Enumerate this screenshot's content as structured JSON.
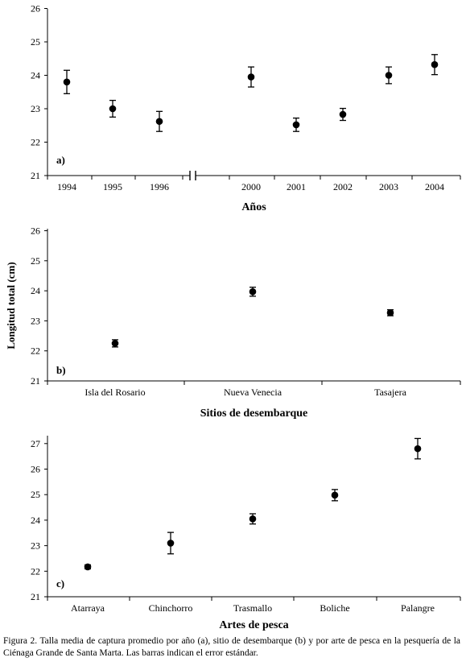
{
  "chart_data": [
    {
      "type": "scatter",
      "panel_label": "a)",
      "xlabel": "Años",
      "ylabel": "",
      "ylim": [
        21,
        26
      ],
      "yticks": [
        21,
        22,
        23,
        24,
        25,
        26
      ],
      "categories": [
        "1994",
        "1995",
        "1996",
        "2000",
        "2001",
        "2002",
        "2003",
        "2004"
      ],
      "axis_break_after": "1996",
      "values": [
        23.8,
        23.0,
        22.62,
        23.95,
        22.52,
        22.83,
        24.0,
        24.32
      ],
      "errors": [
        0.35,
        0.25,
        0.3,
        0.3,
        0.2,
        0.18,
        0.25,
        0.3
      ]
    },
    {
      "type": "scatter",
      "panel_label": "b)",
      "xlabel": "Sitios de desembarque",
      "ylabel": "Longitud total (cm)",
      "ylim": [
        21,
        26
      ],
      "yticks": [
        21,
        22,
        23,
        24,
        25,
        26
      ],
      "categories": [
        "Isla del Rosario",
        "Nueva Venecia",
        "Tasajera"
      ],
      "values": [
        22.25,
        23.97,
        23.27
      ],
      "errors": [
        0.12,
        0.15,
        0.1
      ]
    },
    {
      "type": "scatter",
      "panel_label": "c)",
      "xlabel": "Artes de pesca",
      "ylabel": "",
      "ylim": [
        21,
        27.5
      ],
      "yticks": [
        21,
        22,
        23,
        24,
        25,
        26,
        27
      ],
      "categories": [
        "Atarraya",
        "Chinchorro",
        "Trasmallo",
        "Boliche",
        "Palangre"
      ],
      "values": [
        22.17,
        23.1,
        24.05,
        24.98,
        26.8
      ],
      "errors": [
        0.08,
        0.42,
        0.2,
        0.22,
        0.4
      ]
    }
  ],
  "caption": "Figura 2. Talla media de captura promedio por año (a), sitio de desembarque (b) y por arte de pesca en la pesquería de la Ciénaga Grande de Santa Marta. Las barras indican el error estándar."
}
